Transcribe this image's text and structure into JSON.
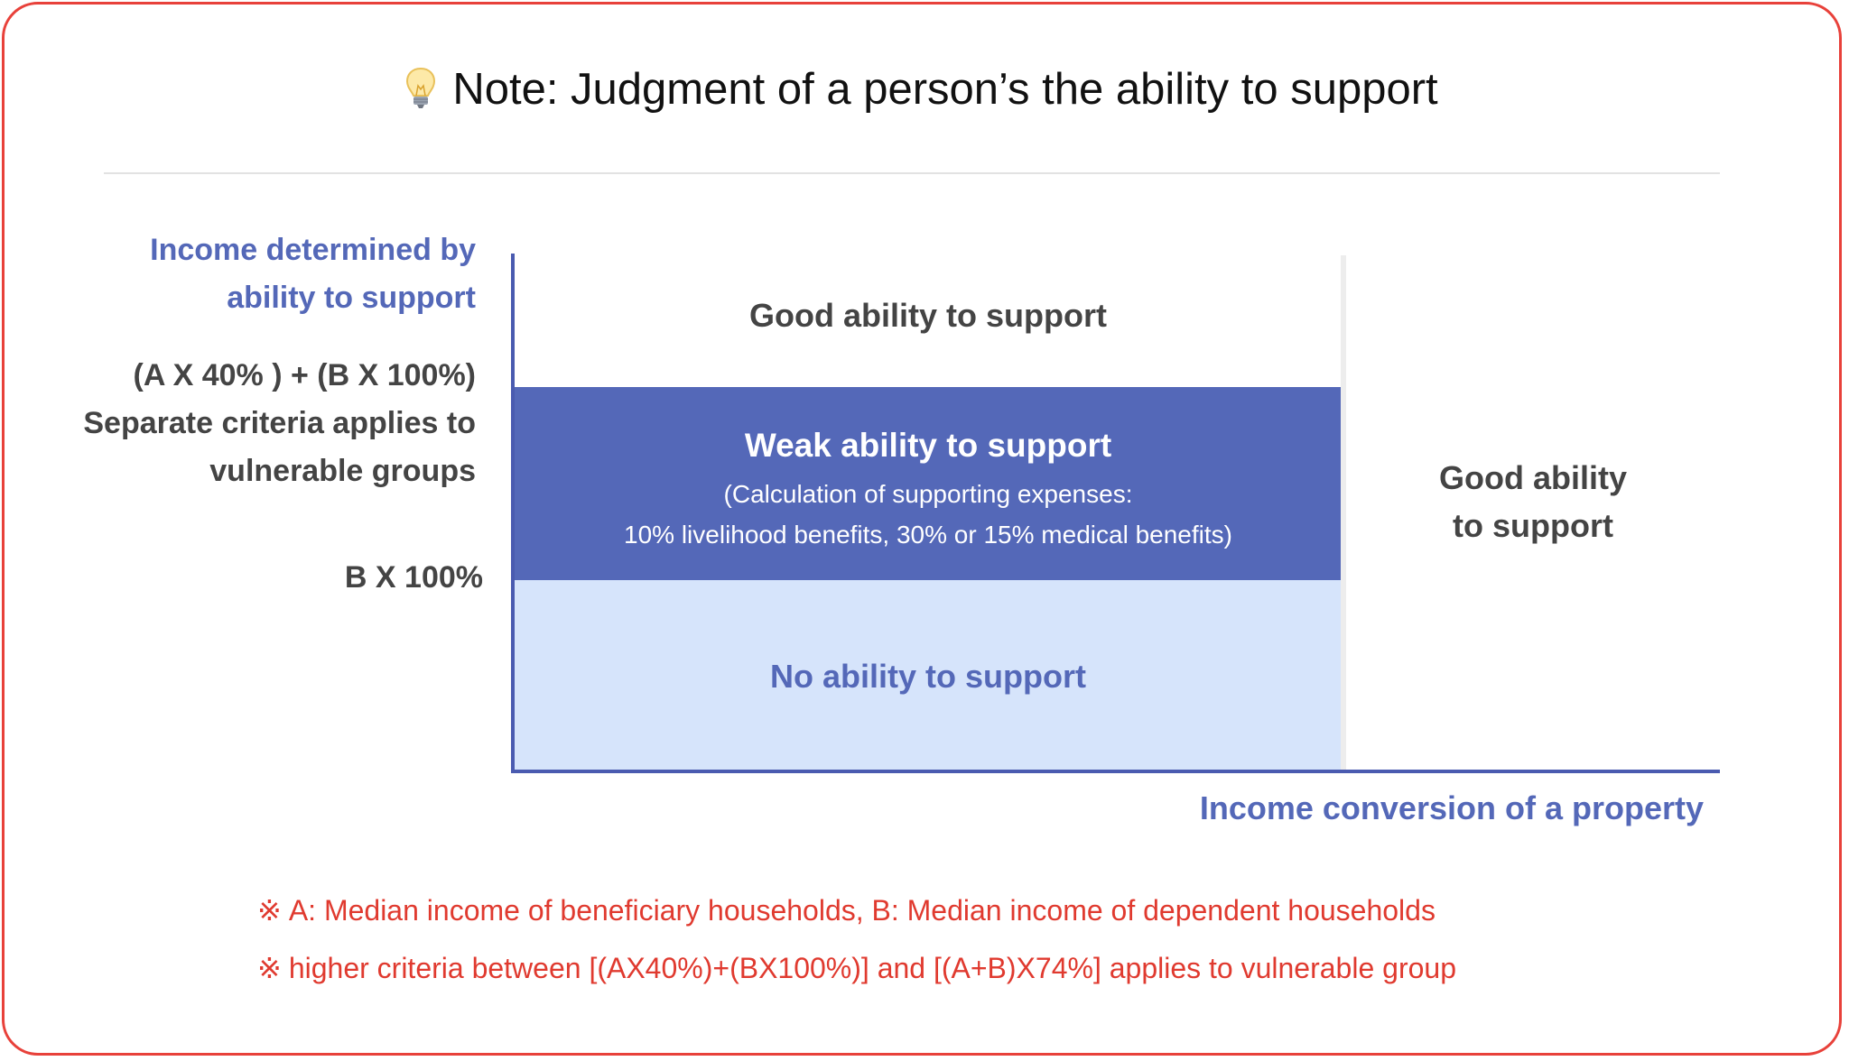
{
  "header": {
    "icon": "lightbulb-icon",
    "title": "Note: Judgment of a person’s the ability to support"
  },
  "y_axis": {
    "label_lines": [
      "Income determined by",
      "ability to support"
    ]
  },
  "thresholds": {
    "upper_lines": [
      "(A X 40% ) + (B X 100%)",
      "Separate criteria applies to",
      "vulnerable groups"
    ],
    "lower": "B X 100%"
  },
  "zones": {
    "good_top": "Good ability to support",
    "weak": {
      "title": "Weak ability to support",
      "detail_lines": [
        "(Calculation of supporting expenses:",
        "10% livelihood benefits, 30% or 15% medical benefits)"
      ]
    },
    "none": "No ability to support",
    "good_right_lines": [
      "Good ability",
      "to support"
    ]
  },
  "x_axis": {
    "label": "Income conversion of a property"
  },
  "notes": {
    "mark": "※",
    "lines": [
      "A: Median income of beneficiary households, B: Median income of dependent households",
      "higher criteria between [(AX40%)+(BX100%)] and [(A+B)X74%] applies to vulnerable group"
    ]
  },
  "colors": {
    "border": "#e8413a",
    "accent_blue": "#5468b8",
    "light_blue": "#d6e4fb",
    "note_red": "#e03a2f",
    "text_dark": "#444444"
  }
}
